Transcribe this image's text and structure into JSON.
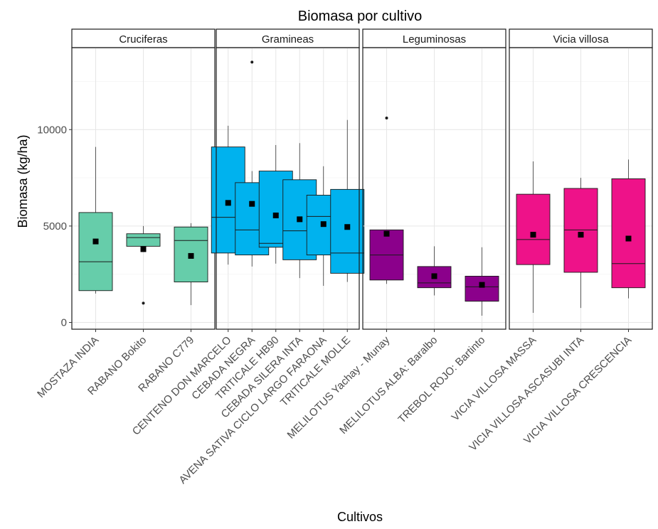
{
  "chart_data": {
    "type": "boxplot",
    "title": "Biomasa por cultivo",
    "xlabel": "Cultivos",
    "ylabel": "Biomasa (kg/ha)",
    "ylim": [
      -350,
      14250
    ],
    "yticks": [
      0,
      5000,
      10000
    ],
    "ytick_labels": [
      "0",
      "5000",
      "10000"
    ],
    "grid": true,
    "facets": [
      {
        "name": "Cruciferas",
        "color": "#66CDAA",
        "categories": [
          {
            "label": "MOSTAZA INDIA",
            "min": 1500,
            "q1": 1650,
            "median": 3150,
            "q3": 5700,
            "max": 9100,
            "mean": 4200,
            "outliers": []
          },
          {
            "label": "RABANO Bokito",
            "min": 3950,
            "q1": 3950,
            "median": 4400,
            "q3": 4600,
            "max": 5000,
            "mean": 3800,
            "outliers": [
              1000
            ]
          },
          {
            "label": "RABANO C779",
            "min": 900,
            "q1": 2100,
            "median": 4250,
            "q3": 4950,
            "max": 5150,
            "mean": 3450,
            "outliers": []
          }
        ]
      },
      {
        "name": "Gramineas",
        "color": "#00B2EE",
        "categories": [
          {
            "label": "CENTENO DON MARCELO",
            "min": 3000,
            "q1": 3600,
            "median": 5450,
            "q3": 9100,
            "max": 10200,
            "mean": 6200,
            "outliers": []
          },
          {
            "label": "CEBADA NEGRA",
            "min": 2900,
            "q1": 3500,
            "median": 4800,
            "q3": 7250,
            "max": 7850,
            "mean": 6150,
            "outliers": [
              13500
            ]
          },
          {
            "label": "TRITICALE HB90",
            "min": 3050,
            "q1": 3900,
            "median": 4100,
            "q3": 7850,
            "max": 9200,
            "mean": 5550,
            "outliers": []
          },
          {
            "label": "CEBADA SILERA INTA",
            "min": 2300,
            "q1": 3250,
            "median": 4750,
            "q3": 7400,
            "max": 9300,
            "mean": 5350,
            "outliers": []
          },
          {
            "label": "AVENA SATIVA CICLO LARGO FARAONA",
            "min": 1900,
            "q1": 3500,
            "median": 5500,
            "q3": 6600,
            "max": 8100,
            "mean": 5100,
            "outliers": []
          },
          {
            "label": "TRITICALE MOLLE",
            "min": 2100,
            "q1": 2550,
            "median": 3600,
            "q3": 6900,
            "max": 10500,
            "mean": 4950,
            "outliers": []
          }
        ]
      },
      {
        "name": "Leguminosas",
        "color": "#8B008B",
        "categories": [
          {
            "label": "MELILOTUS Yachay - Munay",
            "min": 2000,
            "q1": 2200,
            "median": 3500,
            "q3": 4800,
            "max": 4800,
            "mean": 4600,
            "outliers": [
              10600
            ]
          },
          {
            "label": "MELILOTUS ALBA: Baralbo",
            "min": 1400,
            "q1": 1800,
            "median": 2050,
            "q3": 2900,
            "max": 3950,
            "mean": 2400,
            "outliers": []
          },
          {
            "label": "TREBOL ROJO: Bartinto",
            "min": 350,
            "q1": 1100,
            "median": 1850,
            "q3": 2400,
            "max": 3900,
            "mean": 1950,
            "outliers": []
          }
        ]
      },
      {
        "name": "Vicia villosa",
        "color": "#EE1289",
        "categories": [
          {
            "label": "VICIA VILLOSA  MASSA",
            "min": 500,
            "q1": 3000,
            "median": 4300,
            "q3": 6650,
            "max": 8350,
            "mean": 4550,
            "outliers": []
          },
          {
            "label": "VICIA VILLOSA ASCASUBI INTA",
            "min": 750,
            "q1": 2600,
            "median": 4800,
            "q3": 6950,
            "max": 7500,
            "mean": 4550,
            "outliers": []
          },
          {
            "label": "VICIA VILLOSA  CRESCENCIA",
            "min": 1250,
            "q1": 1800,
            "median": 3050,
            "q3": 7450,
            "max": 8450,
            "mean": 4350,
            "outliers": []
          }
        ]
      }
    ]
  }
}
